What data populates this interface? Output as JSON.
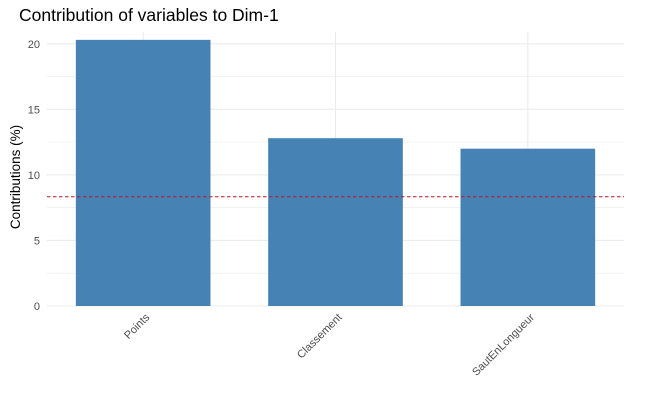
{
  "chart_data": {
    "type": "bar",
    "title": "Contribution of variables to Dim-1",
    "xlabel": "",
    "ylabel": "Contributions (%)",
    "categories": [
      "Points",
      "Classement",
      "SautEnLongueur"
    ],
    "values": [
      20.3,
      12.8,
      12.0
    ],
    "reference_line": {
      "value": 8.33,
      "style": "dashed"
    },
    "ylim": [
      0,
      21
    ],
    "yticks": [
      0,
      5,
      10,
      15,
      20
    ],
    "grid": true,
    "bar_color": "#4682B4",
    "reference_line_color": "#B2182B",
    "grid_color": "#EBEBEB"
  }
}
